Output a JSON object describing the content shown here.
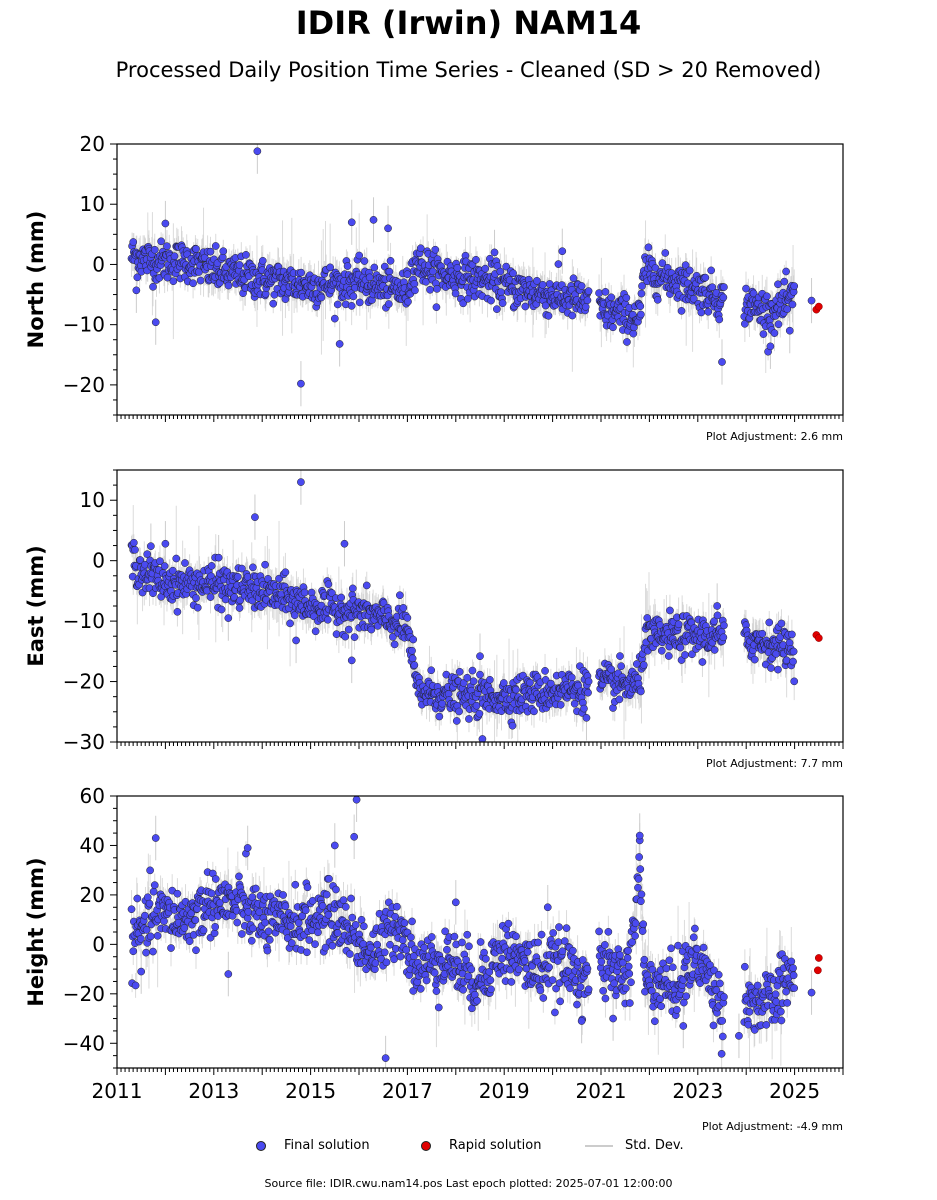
{
  "title": "IDIR (Irwin) NAM14",
  "subtitle": "Processed Daily Position Time Series - Cleaned (SD > 20 Removed)",
  "footer": "Source file: IDIR.cwu.nam14.pos  Last epoch plotted: 2025-07-01 12:00:00",
  "legend": {
    "final": "Final solution",
    "rapid": "Rapid solution",
    "std": "Std. Dev."
  },
  "colors": {
    "final": "#4a4af0",
    "rapid": "#e00000",
    "std": "#cccccc",
    "edge": "#222222"
  },
  "chart_data": [
    {
      "type": "scatter",
      "ylabel": "North (mm)",
      "ylim": [
        -25,
        20
      ],
      "yticks": [
        -20,
        -10,
        0,
        10,
        20
      ],
      "xlim": [
        2011,
        2026
      ],
      "adjustment": "Plot Adjustment: 2.6 mm",
      "final_trend": [
        [
          2011.3,
          1.5
        ],
        [
          2011.8,
          0.5
        ],
        [
          2012.5,
          0.5
        ],
        [
          2013.0,
          -1.0
        ],
        [
          2014.0,
          -2.5
        ],
        [
          2015.0,
          -3.5
        ],
        [
          2016.0,
          -3.0
        ],
        [
          2017.0,
          -4.5
        ],
        [
          2017.15,
          0.5
        ],
        [
          2017.6,
          -1.5
        ],
        [
          2018.5,
          -2.5
        ],
        [
          2019.5,
          -4.5
        ],
        [
          2020.6,
          -6.0
        ],
        [
          2021.0,
          -7.5
        ],
        [
          2021.8,
          -9.0
        ],
        [
          2021.9,
          -1.0
        ],
        [
          2022.5,
          -2.5
        ],
        [
          2023.3,
          -5.0
        ],
        [
          2023.5,
          -6.0
        ],
        [
          2024.0,
          -6.5
        ],
        [
          2024.5,
          -8.0
        ],
        [
          2025.0,
          -5.5
        ]
      ],
      "final_outliers": [
        [
          2013.9,
          18.8
        ],
        [
          2014.8,
          -19.8
        ],
        [
          2015.85,
          7.0
        ],
        [
          2016.3,
          7.4
        ],
        [
          2016.6,
          6.0
        ],
        [
          2012.0,
          6.8
        ],
        [
          2011.4,
          -4.3
        ],
        [
          2011.8,
          -9.6
        ],
        [
          2015.6,
          -13.2
        ],
        [
          2023.5,
          -16.2
        ],
        [
          2024.5,
          -13.6
        ],
        [
          2024.9,
          -11.0
        ],
        [
          2025.35,
          -6.0
        ],
        [
          2020.2,
          2.2
        ],
        [
          2018.8,
          2.0
        ]
      ],
      "rapid_points": [
        [
          2025.45,
          -7.5
        ],
        [
          2025.5,
          -7.0
        ]
      ],
      "std_dev_typical": 2.5
    },
    {
      "type": "scatter",
      "ylabel": "East (mm)",
      "ylim": [
        -30,
        15
      ],
      "yticks": [
        -30,
        -20,
        -10,
        0,
        10
      ],
      "xlim": [
        2011,
        2026
      ],
      "adjustment": "Plot Adjustment: 7.7 mm",
      "final_trend": [
        [
          2011.3,
          0.5
        ],
        [
          2011.6,
          -2.5
        ],
        [
          2012.0,
          -3.5
        ],
        [
          2013.0,
          -4.0
        ],
        [
          2014.0,
          -5.0
        ],
        [
          2015.0,
          -7.5
        ],
        [
          2016.0,
          -8.5
        ],
        [
          2017.0,
          -11.0
        ],
        [
          2017.2,
          -21.5
        ],
        [
          2018.0,
          -22.5
        ],
        [
          2019.0,
          -22.5
        ],
        [
          2020.6,
          -21.0
        ],
        [
          2021.0,
          -20.5
        ],
        [
          2021.8,
          -20.5
        ],
        [
          2021.9,
          -13.0
        ],
        [
          2022.5,
          -12.5
        ],
        [
          2023.5,
          -12.5
        ],
        [
          2024.0,
          -13.0
        ],
        [
          2025.0,
          -14.5
        ]
      ],
      "final_outliers": [
        [
          2014.8,
          13.0
        ],
        [
          2013.85,
          7.2
        ],
        [
          2015.7,
          2.8
        ],
        [
          2012.0,
          2.8
        ],
        [
          2011.7,
          2.4
        ],
        [
          2013.1,
          0.5
        ],
        [
          2014.7,
          -13.2
        ],
        [
          2015.85,
          -16.5
        ],
        [
          2018.55,
          -29.5
        ],
        [
          2018.5,
          -15.8
        ],
        [
          2020.7,
          -26.0
        ],
        [
          2013.3,
          -9.5
        ],
        [
          2023.4,
          -7.5
        ]
      ],
      "rapid_points": [
        [
          2025.45,
          -12.3
        ],
        [
          2025.5,
          -12.8
        ]
      ],
      "std_dev_typical": 2.5
    },
    {
      "type": "scatter",
      "ylabel": "Height (mm)",
      "ylim": [
        -50,
        60
      ],
      "yticks": [
        -40,
        -20,
        0,
        20,
        40,
        60
      ],
      "xlim": [
        2011,
        2026
      ],
      "xticks": [
        2011,
        2013,
        2015,
        2017,
        2019,
        2021,
        2023,
        2025
      ],
      "adjustment": "Plot Adjustment: -4.9 mm",
      "final_trend": [
        [
          2011.3,
          0
        ],
        [
          2011.8,
          12
        ],
        [
          2012.5,
          10
        ],
        [
          2013.0,
          18
        ],
        [
          2013.6,
          15
        ],
        [
          2014.2,
          8
        ],
        [
          2015.0,
          10
        ],
        [
          2015.5,
          12
        ],
        [
          2016.3,
          -5
        ],
        [
          2016.8,
          10
        ],
        [
          2017.2,
          -10
        ],
        [
          2017.8,
          -5
        ],
        [
          2018.4,
          -15
        ],
        [
          2019.0,
          -2
        ],
        [
          2019.6,
          -10
        ],
        [
          2020.2,
          -8
        ],
        [
          2020.6,
          -12
        ],
        [
          2021.0,
          -10
        ],
        [
          2021.6,
          -12
        ],
        [
          2021.8,
          35
        ],
        [
          2021.9,
          -15
        ],
        [
          2022.5,
          -18
        ],
        [
          2023.0,
          -5
        ],
        [
          2023.5,
          -25
        ],
        [
          2024.0,
          -22
        ],
        [
          2024.5,
          -25
        ],
        [
          2025.0,
          -10
        ]
      ],
      "final_outliers": [
        [
          2015.95,
          58.5
        ],
        [
          2016.55,
          -46.0
        ],
        [
          2011.8,
          43.0
        ],
        [
          2015.9,
          43.5
        ],
        [
          2015.5,
          40.0
        ],
        [
          2013.7,
          39.0
        ],
        [
          2021.8,
          44.0
        ],
        [
          2023.85,
          -37.0
        ],
        [
          2022.7,
          -33.0
        ],
        [
          2020.6,
          -31.0
        ],
        [
          2021.25,
          -30.0
        ],
        [
          2013.3,
          -12.0
        ],
        [
          2025.35,
          -19.5
        ],
        [
          2011.5,
          -11.0
        ],
        [
          2018.0,
          17.0
        ],
        [
          2019.9,
          15.0
        ]
      ],
      "rapid_points": [
        [
          2025.5,
          -5.5
        ],
        [
          2025.48,
          -10.5
        ]
      ],
      "std_dev_typical": 6
    }
  ]
}
